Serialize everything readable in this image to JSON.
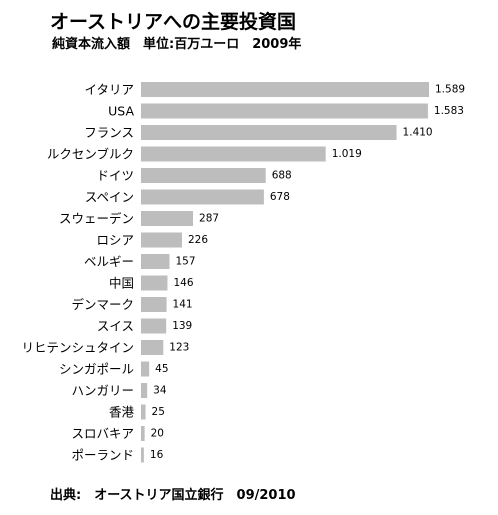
{
  "header": {
    "title": "オーストリアへの主要投資国",
    "subtitle": "純資本流入額　単位:百万ユーロ　2009年"
  },
  "footer": {
    "source": "出典:　オーストリア国立銀行　09/2010"
  },
  "colors": {
    "bar": "#bdbdbd"
  },
  "chart_data": {
    "type": "bar",
    "orientation": "horizontal",
    "title": "オーストリアへの主要投資国",
    "subtitle": "純資本流入額　単位:百万ユーロ　2009年",
    "categories": [
      "イタリア",
      "USA",
      "フランス",
      "ルクセンブルク",
      "ドイツ",
      "スペイン",
      "スウェーデン",
      "ロシア",
      "ベルギー",
      "中国",
      "デンマーク",
      "スイス",
      "リヒテンシュタイン",
      "シンガポール",
      "ハンガリー",
      "香港",
      "スロバキア",
      "ポーランド"
    ],
    "values": [
      1589,
      1583,
      1410,
      1019,
      688,
      678,
      287,
      226,
      157,
      146,
      141,
      139,
      123,
      45,
      34,
      25,
      20,
      16
    ],
    "value_labels": [
      "1.589",
      "1.583",
      "1.410",
      "1.019",
      "688",
      "678",
      "287",
      "226",
      "157",
      "146",
      "141",
      "139",
      "123",
      "45",
      "34",
      "25",
      "20",
      "16"
    ],
    "xlim": [
      0,
      1589
    ],
    "grid": false,
    "legend": "none"
  }
}
